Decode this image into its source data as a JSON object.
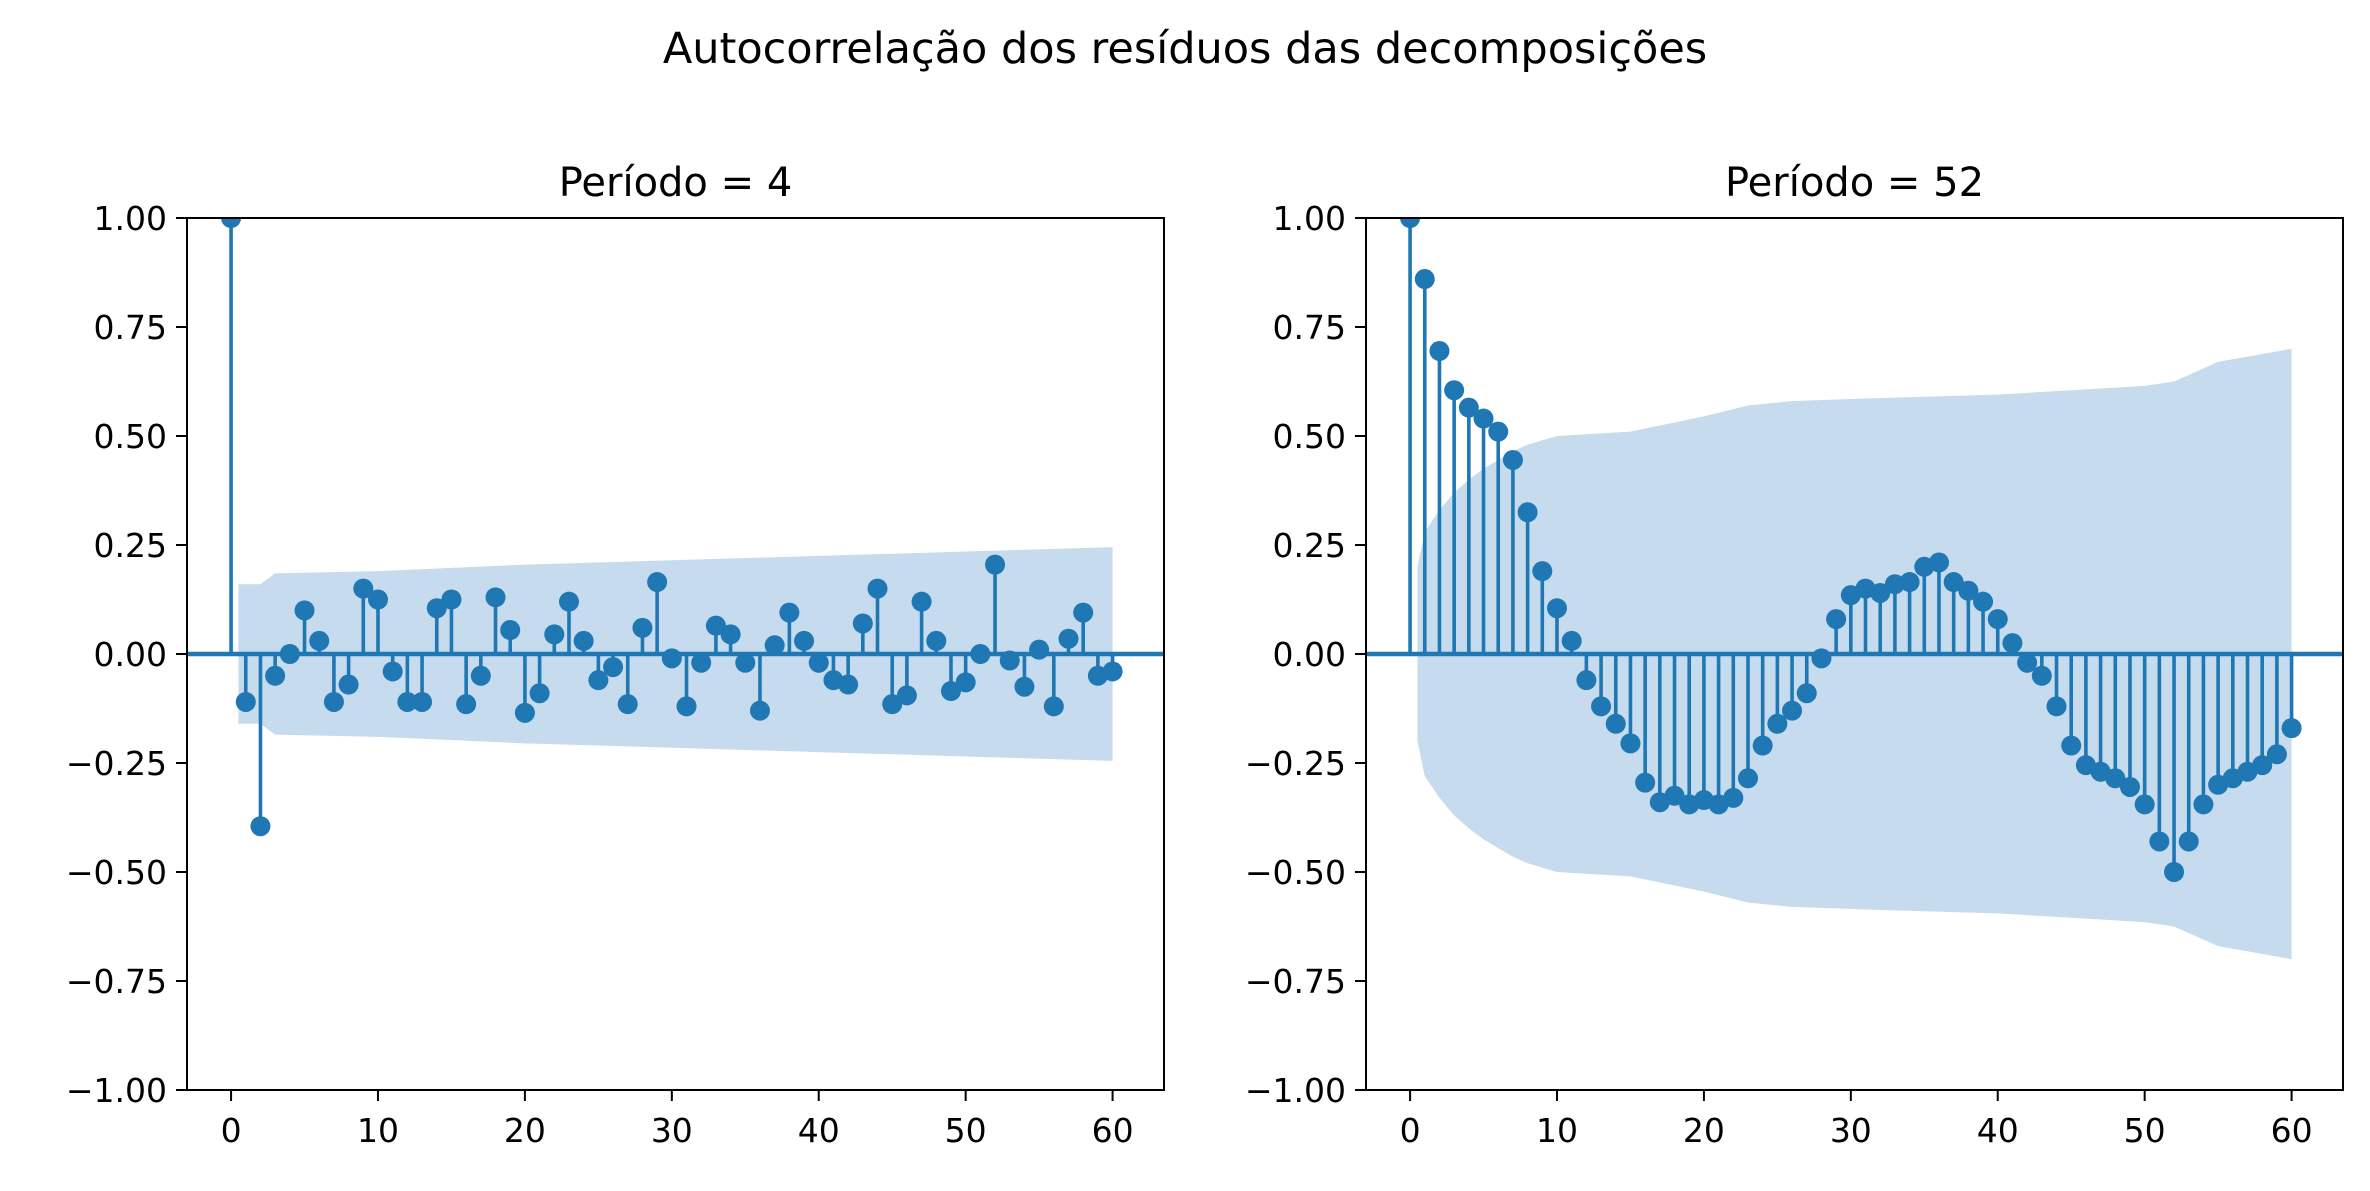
{
  "figure": {
    "suptitle": "Autocorrelação dos resíduos das decomposições"
  },
  "colors": {
    "stem": "#1f77b4",
    "confidence_band": "#c6dbed",
    "axis": "#000000",
    "background": "#ffffff"
  },
  "chart_data": [
    {
      "type": "stem",
      "title": "Período = 4",
      "xlabel": "",
      "ylabel": "",
      "xlim": [
        -3,
        63.5
      ],
      "ylim": [
        -1.0,
        1.0
      ],
      "xticks": [
        0,
        10,
        20,
        30,
        40,
        50,
        60
      ],
      "xtick_labels": [
        "0",
        "10",
        "20",
        "30",
        "40",
        "50",
        "60"
      ],
      "yticks": [
        -1.0,
        -0.75,
        -0.5,
        -0.25,
        0.0,
        0.25,
        0.5,
        0.75,
        1.0
      ],
      "ytick_labels": [
        "−1.00",
        "−0.75",
        "−0.50",
        "−0.25",
        "0.00",
        "0.25",
        "0.50",
        "0.75",
        "1.00"
      ],
      "grid": false,
      "lags": [
        0,
        1,
        2,
        3,
        4,
        5,
        6,
        7,
        8,
        9,
        10,
        11,
        12,
        13,
        14,
        15,
        16,
        17,
        18,
        19,
        20,
        21,
        22,
        23,
        24,
        25,
        26,
        27,
        28,
        29,
        30,
        31,
        32,
        33,
        34,
        35,
        36,
        37,
        38,
        39,
        40,
        41,
        42,
        43,
        44,
        45,
        46,
        47,
        48,
        49,
        50,
        51,
        52,
        53,
        54,
        55,
        56,
        57,
        58,
        59,
        60
      ],
      "values": [
        1.0,
        -0.11,
        -0.395,
        -0.05,
        0.0,
        0.1,
        0.03,
        -0.11,
        -0.07,
        0.15,
        0.125,
        -0.04,
        -0.11,
        -0.11,
        0.105,
        0.125,
        -0.115,
        -0.05,
        0.13,
        0.055,
        -0.135,
        -0.09,
        0.045,
        0.12,
        0.03,
        -0.06,
        -0.03,
        -0.115,
        0.06,
        0.165,
        -0.01,
        -0.12,
        -0.02,
        0.065,
        0.045,
        -0.02,
        -0.13,
        0.02,
        0.095,
        0.03,
        -0.02,
        -0.06,
        -0.07,
        0.07,
        0.15,
        -0.115,
        -0.095,
        0.12,
        0.03,
        -0.085,
        -0.065,
        0.0,
        0.205,
        -0.015,
        -0.075,
        0.01,
        -0.12,
        0.035,
        0.095,
        -0.05,
        -0.04
      ],
      "confidence_band": {
        "lags": [
          0.5,
          2,
          3,
          10,
          20,
          30,
          40,
          50,
          60
        ],
        "upper": [
          0.16,
          0.16,
          0.185,
          0.19,
          0.205,
          0.215,
          0.225,
          0.235,
          0.245
        ]
      }
    },
    {
      "type": "stem",
      "title": "Período = 52",
      "xlabel": "",
      "ylabel": "",
      "xlim": [
        -3,
        63.5
      ],
      "ylim": [
        -1.0,
        1.0
      ],
      "xticks": [
        0,
        10,
        20,
        30,
        40,
        50,
        60
      ],
      "xtick_labels": [
        "0",
        "10",
        "20",
        "30",
        "40",
        "50",
        "60"
      ],
      "yticks": [
        -1.0,
        -0.75,
        -0.5,
        -0.25,
        0.0,
        0.25,
        0.5,
        0.75,
        1.0
      ],
      "ytick_labels": [
        "−1.00",
        "−0.75",
        "−0.50",
        "−0.25",
        "0.00",
        "0.25",
        "0.50",
        "0.75",
        "1.00"
      ],
      "grid": false,
      "lags": [
        0,
        1,
        2,
        3,
        4,
        5,
        6,
        7,
        8,
        9,
        10,
        11,
        12,
        13,
        14,
        15,
        16,
        17,
        18,
        19,
        20,
        21,
        22,
        23,
        24,
        25,
        26,
        27,
        28,
        29,
        30,
        31,
        32,
        33,
        34,
        35,
        36,
        37,
        38,
        39,
        40,
        41,
        42,
        43,
        44,
        45,
        46,
        47,
        48,
        49,
        50,
        51,
        52,
        53,
        54,
        55,
        56,
        57,
        58,
        59,
        60
      ],
      "values": [
        1.0,
        0.86,
        0.695,
        0.605,
        0.565,
        0.54,
        0.51,
        0.445,
        0.325,
        0.19,
        0.105,
        0.03,
        -0.06,
        -0.12,
        -0.16,
        -0.205,
        -0.295,
        -0.34,
        -0.325,
        -0.345,
        -0.335,
        -0.345,
        -0.33,
        -0.285,
        -0.21,
        -0.16,
        -0.13,
        -0.09,
        -0.01,
        0.08,
        0.135,
        0.15,
        0.14,
        0.16,
        0.165,
        0.2,
        0.21,
        0.165,
        0.145,
        0.12,
        0.08,
        0.025,
        -0.02,
        -0.05,
        -0.12,
        -0.21,
        -0.255,
        -0.27,
        -0.285,
        -0.305,
        -0.345,
        -0.43,
        -0.5,
        -0.43,
        -0.345,
        -0.3,
        -0.285,
        -0.27,
        -0.255,
        -0.23,
        -0.17
      ],
      "confidence_band": {
        "lags": [
          0.5,
          1,
          2,
          3,
          4,
          5,
          6,
          7,
          8,
          10,
          15,
          20,
          23,
          26,
          30,
          35,
          40,
          45,
          50,
          52,
          53,
          55,
          60
        ],
        "upper": [
          0.2,
          0.28,
          0.33,
          0.37,
          0.4,
          0.425,
          0.445,
          0.465,
          0.48,
          0.5,
          0.51,
          0.545,
          0.57,
          0.58,
          0.585,
          0.59,
          0.595,
          0.605,
          0.615,
          0.625,
          0.64,
          0.67,
          0.7
        ]
      }
    }
  ]
}
